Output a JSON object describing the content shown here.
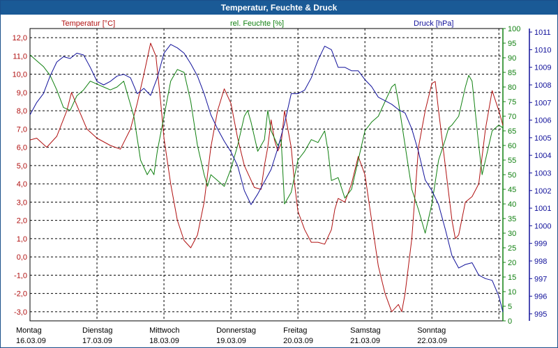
{
  "window": {
    "title": "Temperatur, Feuchte & Druck"
  },
  "colors": {
    "temperature": "#b01010",
    "humidity": "#108010",
    "pressure": "#10109a",
    "title_bar": "#1a5a96"
  },
  "chart_data": {
    "type": "line",
    "title": "Temperatur, Feuchte & Druck",
    "axes": {
      "temperature": {
        "label": "Temperatur [°C]",
        "range": [
          -3.5,
          12.5
        ],
        "ticks": [
          "12,0",
          "11,0",
          "10,0",
          "9,0",
          "8,0",
          "7,0",
          "6,0",
          "5,0",
          "4,0",
          "3,0",
          "2,0",
          "1,0",
          "0,0",
          "-1,0",
          "-2,0",
          "-3,0"
        ]
      },
      "humidity": {
        "label": "rel. Feuchte [%]",
        "range": [
          0,
          100
        ],
        "ticks": [
          "100",
          "95",
          "90",
          "85",
          "80",
          "75",
          "70",
          "65",
          "60",
          "55",
          "50",
          "45",
          "40",
          "35",
          "30",
          "25",
          "20",
          "15",
          "10",
          "5",
          "0"
        ]
      },
      "pressure": {
        "label": "Druck [hPa]",
        "range": [
          994.6,
          1011.2
        ],
        "ticks": [
          "1011",
          "1010",
          "1009",
          "1008",
          "1007",
          "1006",
          "1005",
          "1004",
          "1003",
          "1002",
          "1001",
          "1000",
          "999",
          "998",
          "997",
          "996",
          "995"
        ]
      }
    },
    "x_range": [
      0,
      7.06
    ],
    "days": [
      {
        "name": "Montag",
        "date": "16.03.09"
      },
      {
        "name": "Dienstag",
        "date": "17.03.09"
      },
      {
        "name": "Mittwoch",
        "date": "18.03.09"
      },
      {
        "name": "Donnerstag",
        "date": "19.03.09"
      },
      {
        "name": "Freitag",
        "date": "20.03.09"
      },
      {
        "name": "Samstag",
        "date": "21.03.09"
      },
      {
        "name": "Sonntag",
        "date": "22.03.09"
      }
    ],
    "series": [
      {
        "name": "Temperatur [°C]",
        "axis": "temperature",
        "points": [
          [
            0,
            6.4
          ],
          [
            0.1,
            6.5
          ],
          [
            0.25,
            6.0
          ],
          [
            0.4,
            6.6
          ],
          [
            0.55,
            8.0
          ],
          [
            0.62,
            9.0
          ],
          [
            0.7,
            8.3
          ],
          [
            0.85,
            7.0
          ],
          [
            1.0,
            6.5
          ],
          [
            1.2,
            6.1
          ],
          [
            1.35,
            5.9
          ],
          [
            1.5,
            7.0
          ],
          [
            1.6,
            8.4
          ],
          [
            1.7,
            10.0
          ],
          [
            1.8,
            11.7
          ],
          [
            1.88,
            11.0
          ],
          [
            1.95,
            8.5
          ],
          [
            2.0,
            6.5
          ],
          [
            2.1,
            4.0
          ],
          [
            2.2,
            2.0
          ],
          [
            2.3,
            0.9
          ],
          [
            2.4,
            0.5
          ],
          [
            2.5,
            1.2
          ],
          [
            2.6,
            3.0
          ],
          [
            2.7,
            6.0
          ],
          [
            2.8,
            8.0
          ],
          [
            2.9,
            9.2
          ],
          [
            3.0,
            8.4
          ],
          [
            3.1,
            6.5
          ],
          [
            3.2,
            5.0
          ],
          [
            3.35,
            3.8
          ],
          [
            3.45,
            3.7
          ],
          [
            3.5,
            5.0
          ],
          [
            3.55,
            6.0
          ],
          [
            3.6,
            7.5
          ],
          [
            3.65,
            6.4
          ],
          [
            3.7,
            5.8
          ],
          [
            3.75,
            6.2
          ],
          [
            3.8,
            8.0
          ],
          [
            3.85,
            7.0
          ],
          [
            3.9,
            6.0
          ],
          [
            3.95,
            4.0
          ],
          [
            4.0,
            2.5
          ],
          [
            4.1,
            1.5
          ],
          [
            4.2,
            0.8
          ],
          [
            4.3,
            0.8
          ],
          [
            4.4,
            0.7
          ],
          [
            4.5,
            1.5
          ],
          [
            4.55,
            2.6
          ],
          [
            4.6,
            3.2
          ],
          [
            4.7,
            3.0
          ],
          [
            4.8,
            4.0
          ],
          [
            4.9,
            5.5
          ],
          [
            5.0,
            4.5
          ],
          [
            5.1,
            2.0
          ],
          [
            5.2,
            -0.5
          ],
          [
            5.3,
            -2.0
          ],
          [
            5.4,
            -3.0
          ],
          [
            5.5,
            -2.6
          ],
          [
            5.55,
            -3.0
          ],
          [
            5.6,
            -2.0
          ],
          [
            5.7,
            1.0
          ],
          [
            5.8,
            6.0
          ],
          [
            5.9,
            8.0
          ],
          [
            6.0,
            9.5
          ],
          [
            6.05,
            9.6
          ],
          [
            6.1,
            8.0
          ],
          [
            6.2,
            5.0
          ],
          [
            6.3,
            2.0
          ],
          [
            6.35,
            1.0
          ],
          [
            6.4,
            1.2
          ],
          [
            6.5,
            3.0
          ],
          [
            6.6,
            3.3
          ],
          [
            6.7,
            4.0
          ],
          [
            6.8,
            7.0
          ],
          [
            6.9,
            9.1
          ],
          [
            7.0,
            8.0
          ],
          [
            7.06,
            7.2
          ]
        ]
      },
      {
        "name": "rel. Feuchte [%]",
        "axis": "humidity",
        "points": [
          [
            0,
            91
          ],
          [
            0.1,
            89
          ],
          [
            0.2,
            87
          ],
          [
            0.3,
            84
          ],
          [
            0.4,
            79
          ],
          [
            0.5,
            73
          ],
          [
            0.6,
            72
          ],
          [
            0.7,
            77
          ],
          [
            0.8,
            79
          ],
          [
            0.9,
            82
          ],
          [
            1.0,
            81
          ],
          [
            1.1,
            80
          ],
          [
            1.2,
            79
          ],
          [
            1.3,
            80
          ],
          [
            1.4,
            82
          ],
          [
            1.45,
            78
          ],
          [
            1.55,
            70
          ],
          [
            1.65,
            55
          ],
          [
            1.75,
            50
          ],
          [
            1.8,
            52
          ],
          [
            1.85,
            50
          ],
          [
            1.9,
            58
          ],
          [
            2.0,
            70
          ],
          [
            2.1,
            82
          ],
          [
            2.2,
            86
          ],
          [
            2.3,
            85
          ],
          [
            2.4,
            75
          ],
          [
            2.5,
            60
          ],
          [
            2.6,
            50
          ],
          [
            2.65,
            46
          ],
          [
            2.7,
            50
          ],
          [
            2.8,
            48
          ],
          [
            2.9,
            46
          ],
          [
            3.0,
            52
          ],
          [
            3.1,
            60
          ],
          [
            3.2,
            70
          ],
          [
            3.25,
            72
          ],
          [
            3.3,
            68
          ],
          [
            3.4,
            58
          ],
          [
            3.5,
            62
          ],
          [
            3.55,
            72
          ],
          [
            3.6,
            65
          ],
          [
            3.7,
            60
          ],
          [
            3.75,
            62
          ],
          [
            3.8,
            40
          ],
          [
            3.9,
            44
          ],
          [
            4.0,
            55
          ],
          [
            4.1,
            58
          ],
          [
            4.2,
            62
          ],
          [
            4.3,
            61
          ],
          [
            4.4,
            65
          ],
          [
            4.45,
            58
          ],
          [
            4.5,
            48
          ],
          [
            4.6,
            49
          ],
          [
            4.7,
            42
          ],
          [
            4.8,
            45
          ],
          [
            4.9,
            55
          ],
          [
            5.0,
            65
          ],
          [
            5.1,
            68
          ],
          [
            5.2,
            70
          ],
          [
            5.3,
            75
          ],
          [
            5.4,
            80
          ],
          [
            5.45,
            81
          ],
          [
            5.5,
            75
          ],
          [
            5.6,
            60
          ],
          [
            5.7,
            45
          ],
          [
            5.8,
            38
          ],
          [
            5.9,
            30
          ],
          [
            6.0,
            40
          ],
          [
            6.1,
            55
          ],
          [
            6.2,
            62
          ],
          [
            6.25,
            66
          ],
          [
            6.3,
            67
          ],
          [
            6.4,
            70
          ],
          [
            6.5,
            80
          ],
          [
            6.55,
            84
          ],
          [
            6.6,
            82
          ],
          [
            6.7,
            60
          ],
          [
            6.75,
            50
          ],
          [
            6.8,
            55
          ],
          [
            6.9,
            65
          ],
          [
            7.0,
            67
          ],
          [
            7.06,
            66
          ]
        ]
      },
      {
        "name": "Druck [hPa]",
        "axis": "pressure",
        "points": [
          [
            0,
            1006.3
          ],
          [
            0.1,
            1007.0
          ],
          [
            0.2,
            1007.5
          ],
          [
            0.3,
            1008.5
          ],
          [
            0.4,
            1009.3
          ],
          [
            0.5,
            1009.6
          ],
          [
            0.6,
            1009.5
          ],
          [
            0.7,
            1009.8
          ],
          [
            0.8,
            1009.7
          ],
          [
            0.9,
            1009.0
          ],
          [
            1.0,
            1008.2
          ],
          [
            1.1,
            1008.0
          ],
          [
            1.2,
            1008.2
          ],
          [
            1.3,
            1008.5
          ],
          [
            1.4,
            1008.6
          ],
          [
            1.5,
            1008.4
          ],
          [
            1.6,
            1007.5
          ],
          [
            1.7,
            1007.8
          ],
          [
            1.8,
            1007.4
          ],
          [
            1.9,
            1008.4
          ],
          [
            2.0,
            1009.8
          ],
          [
            2.1,
            1010.3
          ],
          [
            2.2,
            1010.1
          ],
          [
            2.3,
            1009.8
          ],
          [
            2.4,
            1009.2
          ],
          [
            2.5,
            1008.5
          ],
          [
            2.6,
            1007.5
          ],
          [
            2.7,
            1006.3
          ],
          [
            2.8,
            1005.5
          ],
          [
            2.9,
            1004.8
          ],
          [
            3.0,
            1004.2
          ],
          [
            3.1,
            1003.4
          ],
          [
            3.2,
            1002.0
          ],
          [
            3.3,
            1001.2
          ],
          [
            3.4,
            1001.8
          ],
          [
            3.5,
            1002.5
          ],
          [
            3.6,
            1003.2
          ],
          [
            3.7,
            1004.4
          ],
          [
            3.8,
            1005.8
          ],
          [
            3.9,
            1007.5
          ],
          [
            4.0,
            1007.5
          ],
          [
            4.1,
            1007.7
          ],
          [
            4.2,
            1008.4
          ],
          [
            4.3,
            1009.4
          ],
          [
            4.4,
            1010.2
          ],
          [
            4.5,
            1010.0
          ],
          [
            4.6,
            1009.0
          ],
          [
            4.7,
            1009.0
          ],
          [
            4.8,
            1008.8
          ],
          [
            4.9,
            1008.8
          ],
          [
            5.0,
            1008.3
          ],
          [
            5.1,
            1007.9
          ],
          [
            5.2,
            1007.3
          ],
          [
            5.3,
            1007.1
          ],
          [
            5.4,
            1006.9
          ],
          [
            5.5,
            1006.6
          ],
          [
            5.6,
            1006.4
          ],
          [
            5.7,
            1005.5
          ],
          [
            5.8,
            1004.2
          ],
          [
            5.9,
            1002.6
          ],
          [
            6.0,
            1002.0
          ],
          [
            6.1,
            1001.2
          ],
          [
            6.2,
            999.8
          ],
          [
            6.3,
            998.3
          ],
          [
            6.4,
            997.6
          ],
          [
            6.5,
            997.8
          ],
          [
            6.6,
            997.9
          ],
          [
            6.7,
            997.2
          ],
          [
            6.8,
            997.0
          ],
          [
            6.9,
            996.9
          ],
          [
            7.0,
            996.0
          ],
          [
            7.06,
            995.1
          ]
        ]
      }
    ]
  }
}
